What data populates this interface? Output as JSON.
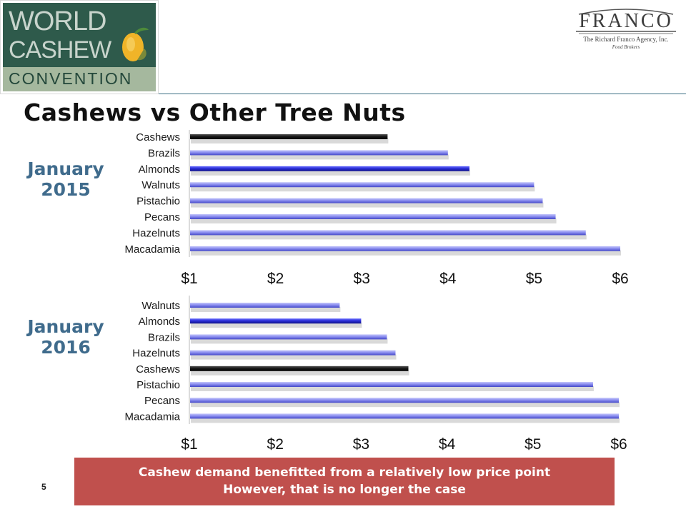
{
  "logo_left": {
    "line1": "WORLD",
    "line2": "CASHEW",
    "line3": "CONVENTION"
  },
  "logo_right": {
    "name": "FRANCO",
    "tagline": "The Richard Franco Agency, Inc.",
    "subtagline": "Food Brokers"
  },
  "title": "Cashews vs Other Tree Nuts",
  "periods": [
    {
      "line1": "January",
      "line2": "2015"
    },
    {
      "line1": "January",
      "line2": "2016"
    }
  ],
  "page_number": "5",
  "banner": {
    "line1": "Cashew demand benefitted from a relatively low price point",
    "line2": "However, that is no longer the case"
  },
  "colors": {
    "cashews": "#1a1a1a",
    "almonds": "#2b2fd9",
    "other": "#8c8ff0",
    "title": "#111111",
    "period": "#3f6b8c",
    "banner": "#c0504d"
  },
  "chart_data": [
    {
      "type": "bar",
      "orientation": "horizontal",
      "title": "",
      "categories": [
        "Cashews",
        "Brazils",
        "Almonds",
        "Walnuts",
        "Pistachio",
        "Pecans",
        "Hazelnuts",
        "Macadamia"
      ],
      "values": [
        3.3,
        4.0,
        4.25,
        5.0,
        5.1,
        5.25,
        5.6,
        6.0
      ],
      "xlim": [
        1,
        6
      ],
      "xticks": [
        "$1",
        "$2",
        "$3",
        "$4",
        "$5",
        "$6"
      ],
      "highlight": {
        "Cashews": "cashews",
        "Almonds": "almonds"
      },
      "grid": false
    },
    {
      "type": "bar",
      "orientation": "horizontal",
      "title": "",
      "categories": [
        "Walnuts",
        "Almonds",
        "Brazils",
        "Hazelnuts",
        "Cashews",
        "Pistachio",
        "Pecans",
        "Macadamia"
      ],
      "values": [
        2.75,
        3.0,
        3.3,
        3.4,
        3.55,
        5.7,
        6.0,
        6.0
      ],
      "xlim": [
        1,
        6
      ],
      "xticks": [
        "$1",
        "$2",
        "$3",
        "$4",
        "$5",
        "$6"
      ],
      "highlight": {
        "Cashews": "cashews",
        "Almonds": "almonds"
      },
      "grid": false
    }
  ]
}
